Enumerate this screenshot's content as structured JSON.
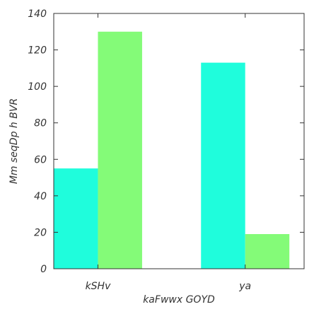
{
  "chart_data": {
    "type": "bar",
    "title": "",
    "xlabel": "kaFwwx GOYD",
    "ylabel": "Mm seqDp h BVR",
    "categories": [
      "kSHv",
      "ya"
    ],
    "series": [
      {
        "values": [
          55,
          113
        ],
        "color": "#1ffddc"
      },
      {
        "values": [
          130,
          19
        ],
        "color": "#84fb78"
      }
    ],
    "ylim": [
      0,
      140
    ],
    "yticks": [
      0,
      20,
      40,
      60,
      80,
      100,
      120,
      140
    ],
    "grid": false,
    "legend": "none"
  }
}
